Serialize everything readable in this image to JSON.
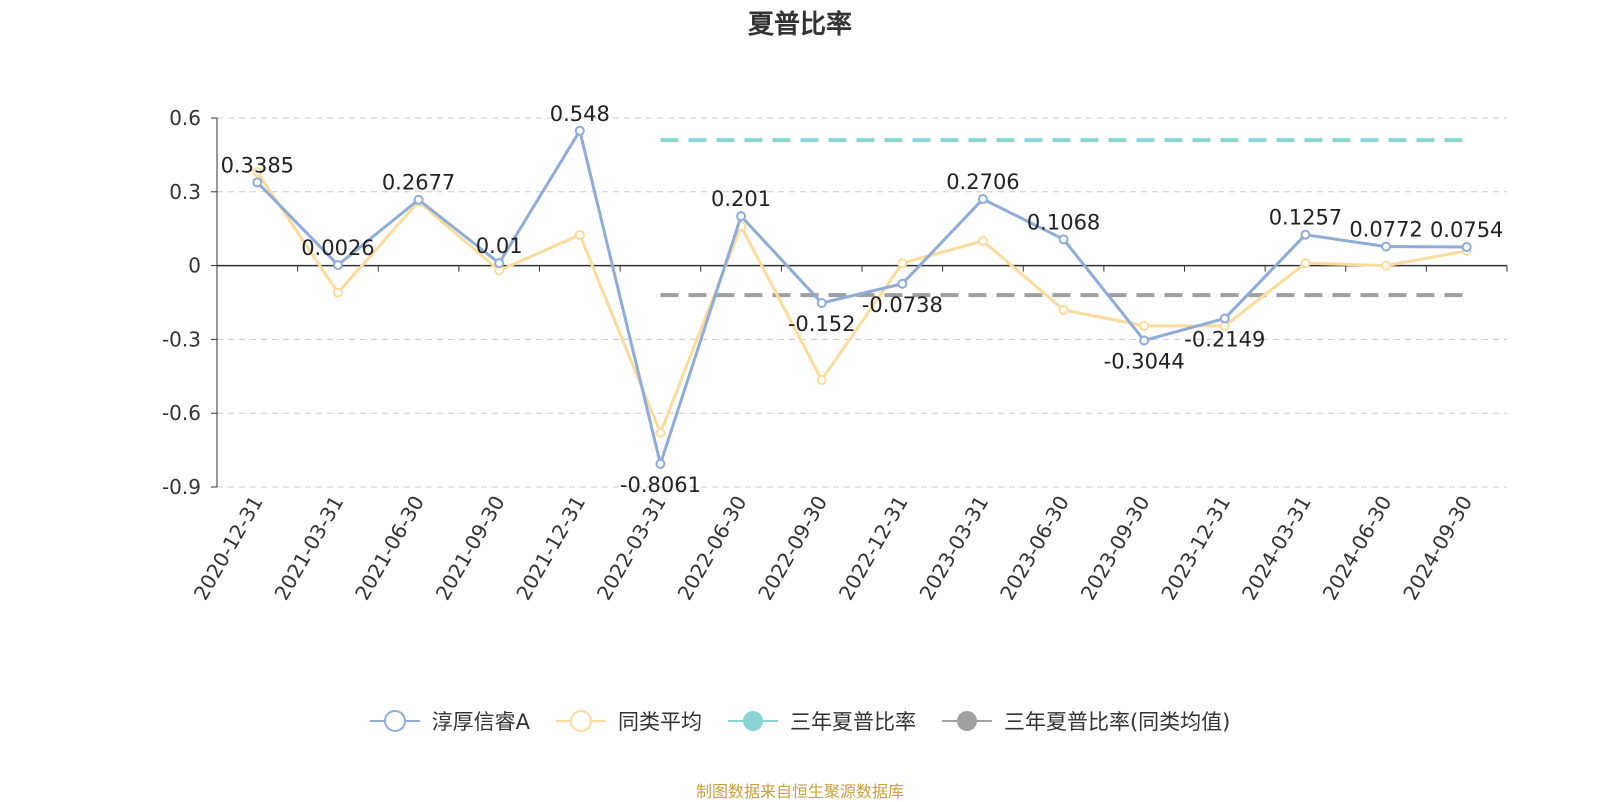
{
  "chart_data": {
    "type": "line",
    "title": "夏普比率",
    "categories": [
      "2020-12-31",
      "2021-03-31",
      "2021-06-30",
      "2021-09-30",
      "2021-12-31",
      "2022-03-31",
      "2022-06-30",
      "2022-09-30",
      "2022-12-31",
      "2023-03-31",
      "2023-06-30",
      "2023-09-30",
      "2023-12-31",
      "2024-03-31",
      "2024-06-30",
      "2024-09-30"
    ],
    "ylim": [
      -0.9,
      0.6
    ],
    "yticks": [
      0.6,
      0.3,
      0,
      -0.3,
      -0.6,
      -0.9
    ],
    "ytick_labels": [
      "0.6",
      "0.3",
      "0",
      "-0.3",
      "-0.6",
      "-0.9"
    ],
    "grid": true,
    "legend_position": "bottom",
    "series": [
      {
        "name": "淳厚信睿A",
        "color": "#8eacd8",
        "values": [
          0.3385,
          0.0026,
          0.2677,
          0.01,
          0.548,
          -0.8061,
          0.201,
          -0.152,
          -0.0738,
          0.2706,
          0.1068,
          -0.3044,
          -0.2149,
          0.1257,
          0.0772,
          0.0754
        ],
        "labels": [
          "0.3385",
          "0.0026",
          "0.2677",
          "0.01",
          "0.548",
          "-0.8061",
          "0.201",
          "-0.152",
          "-0.0738",
          "0.2706",
          "0.1068",
          "-0.3044",
          "-0.2149",
          "0.1257",
          "0.0772",
          "0.0754"
        ]
      },
      {
        "name": "同类平均",
        "color": "#fddb9c",
        "values": [
          0.38,
          -0.11,
          0.26,
          -0.02,
          0.125,
          -0.68,
          0.16,
          -0.465,
          0.01,
          0.1,
          -0.18,
          -0.245,
          -0.245,
          0.01,
          0.0,
          0.06
        ]
      }
    ],
    "reference_lines": [
      {
        "name": "三年夏普比率",
        "color": "#8ad5d4",
        "value": 0.51,
        "x_start": "2022-03-31",
        "x_end": "2024-09-30"
      },
      {
        "name": "三年夏普比率(同类均值)",
        "color": "#a0a0a0",
        "value": -0.12,
        "x_start": "2022-03-31",
        "x_end": "2024-09-30"
      }
    ]
  },
  "source_note": "制图数据来自恒生聚源数据库"
}
